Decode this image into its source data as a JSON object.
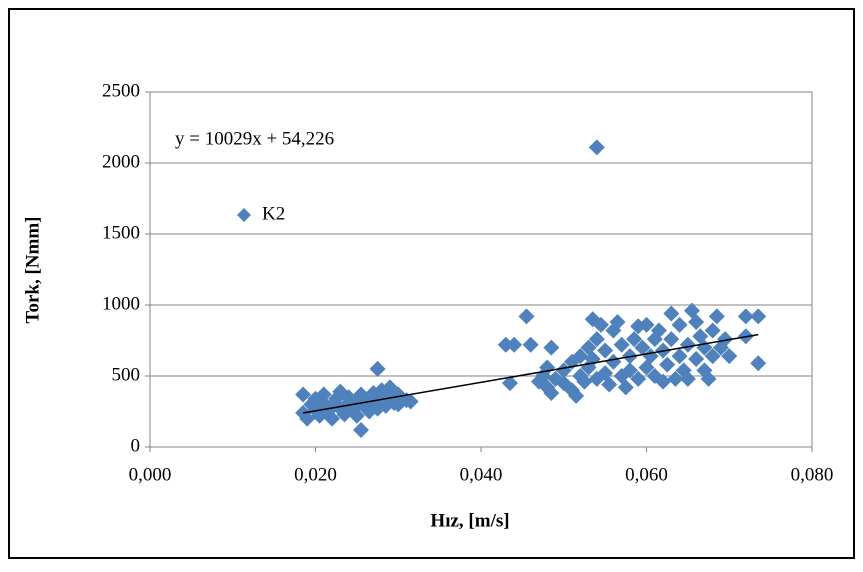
{
  "chart_data": {
    "type": "scatter",
    "xlabel": "Hız, [m/s]",
    "ylabel": "Tork, [Nmm]",
    "xlim": [
      0,
      0.08
    ],
    "ylim": [
      0,
      2500
    ],
    "xticks": [
      {
        "value": 0,
        "label": "0,000"
      },
      {
        "value": 0.02,
        "label": "0,020"
      },
      {
        "value": 0.04,
        "label": "0,040"
      },
      {
        "value": 0.06,
        "label": "0,060"
      },
      {
        "value": 0.08,
        "label": "0,080"
      }
    ],
    "yticks": [
      0,
      500,
      1000,
      1500,
      2000,
      2500
    ],
    "grid": true,
    "legend": "left",
    "trendline": {
      "label": "y = 10029x + 54,226",
      "slope": 10029,
      "intercept": 54.226,
      "color": "#000000"
    },
    "series": [
      {
        "name": "K2",
        "color": "#4f81bd",
        "x": [
          0.0185,
          0.0185,
          0.019,
          0.0195,
          0.02,
          0.02,
          0.0205,
          0.021,
          0.021,
          0.0215,
          0.022,
          0.022,
          0.0225,
          0.023,
          0.023,
          0.0235,
          0.024,
          0.024,
          0.0245,
          0.025,
          0.025,
          0.0255,
          0.0255,
          0.026,
          0.026,
          0.0265,
          0.027,
          0.027,
          0.0275,
          0.0275,
          0.028,
          0.028,
          0.0285,
          0.029,
          0.029,
          0.0295,
          0.03,
          0.03,
          0.031,
          0.0315,
          0.043,
          0.0435,
          0.044,
          0.0455,
          0.046,
          0.047,
          0.0475,
          0.048,
          0.048,
          0.0485,
          0.0485,
          0.049,
          0.05,
          0.05,
          0.051,
          0.051,
          0.0515,
          0.052,
          0.052,
          0.0525,
          0.053,
          0.053,
          0.0535,
          0.0535,
          0.054,
          0.054,
          0.054,
          0.0545,
          0.055,
          0.055,
          0.0555,
          0.056,
          0.056,
          0.0565,
          0.057,
          0.057,
          0.0575,
          0.058,
          0.058,
          0.0585,
          0.059,
          0.059,
          0.0595,
          0.06,
          0.06,
          0.0605,
          0.061,
          0.061,
          0.0615,
          0.062,
          0.062,
          0.0625,
          0.063,
          0.063,
          0.0635,
          0.064,
          0.064,
          0.0645,
          0.065,
          0.065,
          0.0655,
          0.066,
          0.066,
          0.0665,
          0.067,
          0.067,
          0.0675,
          0.068,
          0.068,
          0.0685,
          0.069,
          0.0695,
          0.07,
          0.072,
          0.072,
          0.0735,
          0.0735
        ],
        "values": [
          240,
          370,
          200,
          300,
          260,
          340,
          220,
          310,
          370,
          250,
          290,
          200,
          340,
          270,
          390,
          230,
          310,
          350,
          260,
          300,
          220,
          120,
          370,
          280,
          330,
          250,
          300,
          380,
          550,
          270,
          330,
          400,
          290,
          360,
          420,
          310,
          300,
          370,
          330,
          320,
          720,
          450,
          720,
          920,
          720,
          460,
          500,
          420,
          560,
          380,
          700,
          480,
          540,
          450,
          400,
          600,
          360,
          500,
          640,
          460,
          560,
          700,
          900,
          620,
          480,
          2110,
          760,
          860,
          520,
          680,
          440,
          600,
          820,
          880,
          500,
          720,
          420,
          640,
          540,
          760,
          480,
          850,
          700,
          560,
          860,
          640,
          760,
          500,
          820,
          460,
          680,
          580,
          940,
          760,
          480,
          640,
          860,
          540,
          720,
          480,
          960,
          620,
          880,
          780,
          540,
          700,
          480,
          820,
          640,
          920,
          700,
          760,
          640,
          920,
          780,
          920,
          590
        ]
      }
    ]
  }
}
